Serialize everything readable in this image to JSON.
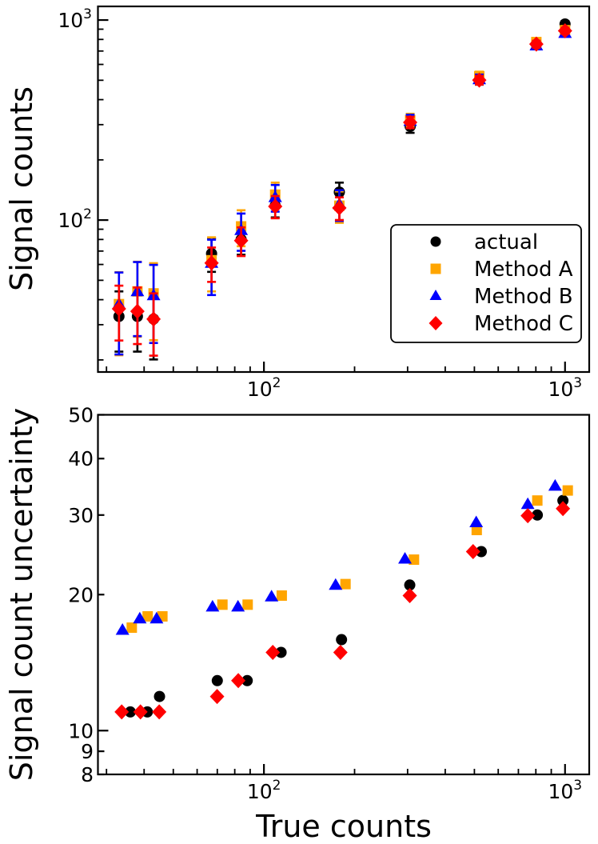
{
  "figure": {
    "description": "Two stacked log-log scatter panels comparing recovered signal counts and their uncertainties versus true counts for three methods against actual values",
    "background": "#ffffff"
  },
  "chart_data": [
    {
      "id": "top-panel",
      "type": "scatter",
      "scale": "log-log",
      "ylabel": "Signal counts",
      "xlabel": "",
      "xlim": [
        28.1,
        1203
      ],
      "ylim": [
        17.4,
        1170
      ],
      "x_major_ticks": [
        100,
        1000
      ],
      "x_minor_ticks": [
        30,
        40,
        50,
        60,
        70,
        80,
        90,
        200,
        300,
        400,
        500,
        600,
        700,
        800,
        900
      ],
      "y_major_ticks": [
        100,
        1000
      ],
      "y_minor_ticks": [
        20,
        30,
        40,
        50,
        60,
        70,
        80,
        90,
        200,
        300,
        400,
        500,
        600,
        700,
        800,
        900
      ],
      "grid": false,
      "legend": [
        "actual",
        "Method A",
        "Method B",
        "Method C"
      ],
      "legend_position": "center right inside plot",
      "error_bars": "each point drawn with vertical error bar = y ± that series' uncertainty from the bottom panel",
      "x_shared": [
        33,
        38,
        43,
        67,
        84,
        109,
        178,
        306,
        519,
        803,
        1000
      ],
      "series": [
        {
          "name": "actual",
          "marker": "circle",
          "color": "#000000",
          "y": [
            33,
            33,
            32,
            68,
            80,
            118,
            138,
            294,
            500,
            760,
            955
          ]
        },
        {
          "name": "Method A",
          "marker": "square",
          "color": "#FFA500",
          "y": [
            38,
            44,
            43,
            63,
            93,
            134,
            118,
            316,
            524,
            776,
            890
          ]
        },
        {
          "name": "Method B",
          "marker": "triangle",
          "color": "#0000FF",
          "y": [
            38,
            44,
            42,
            61,
            89,
            130,
            120,
            312,
            505,
            745,
            860
          ]
        },
        {
          "name": "Method C",
          "marker": "diamond",
          "color": "#FF0000",
          "y": [
            36,
            35,
            32,
            61,
            79,
            117,
            115,
            308,
            501,
            758,
            884
          ]
        }
      ]
    },
    {
      "id": "bottom-panel",
      "type": "scatter",
      "scale": "log-log",
      "ylabel": "Signal count uncertainty",
      "xlabel": "True counts",
      "xlim": [
        28.1,
        1203
      ],
      "ylim": [
        8,
        50
      ],
      "x_major_ticks": [
        100,
        1000
      ],
      "x_minor_ticks": [
        30,
        40,
        50,
        60,
        70,
        80,
        90,
        200,
        300,
        400,
        500,
        600,
        700,
        800,
        900
      ],
      "y_labeled_ticks": [
        8,
        9,
        10,
        20,
        30,
        40,
        50
      ],
      "grid": false,
      "series": [
        {
          "name": "actual",
          "marker": "circle",
          "color": "#000000",
          "x": [
            36,
            41,
            45,
            70,
            88,
            114,
            181,
            305,
            527,
            809,
            984
          ],
          "y": [
            11.0,
            11.0,
            11.9,
            12.9,
            12.9,
            14.9,
            15.9,
            21.0,
            24.9,
            30.0,
            32.3
          ]
        },
        {
          "name": "Method A",
          "marker": "square",
          "color": "#FFA500",
          "x": [
            36.4,
            41.1,
            46,
            72.8,
            88.3,
            114.6,
            186.6,
            315,
            509,
            809,
            1021
          ],
          "y": [
            16.9,
            17.9,
            17.9,
            19.0,
            19.0,
            19.9,
            21.1,
            23.9,
            27.8,
            32.3,
            34.0
          ]
        },
        {
          "name": "Method B",
          "marker": "triangle",
          "color": "#0000FF",
          "x": [
            33.9,
            38.7,
            44,
            67.5,
            82,
            106,
            173,
            294,
            507,
            752,
            927
          ],
          "y": [
            16.7,
            17.7,
            17.7,
            18.8,
            18.8,
            19.8,
            21.0,
            24.0,
            28.9,
            31.7,
            34.8
          ]
        },
        {
          "name": "Method C",
          "marker": "diamond",
          "color": "#FF0000",
          "x": [
            33.7,
            38.9,
            44.9,
            69.9,
            82.2,
            107,
            179.5,
            305,
            495,
            752,
            984
          ],
          "y": [
            11.0,
            11.0,
            11.0,
            11.9,
            12.9,
            14.9,
            14.9,
            19.9,
            24.9,
            29.9,
            31.0
          ]
        }
      ]
    }
  ]
}
